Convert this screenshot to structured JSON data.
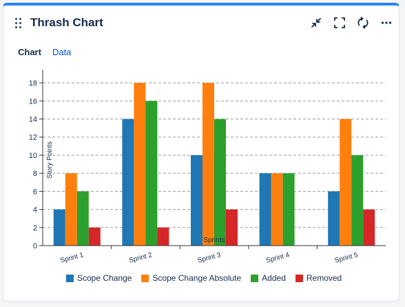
{
  "header": {
    "title": "Thrash Chart",
    "actions": [
      {
        "name": "collapse-icon"
      },
      {
        "name": "fullscreen-icon"
      },
      {
        "name": "refresh-icon"
      },
      {
        "name": "more-icon"
      }
    ]
  },
  "tabs": [
    {
      "label": "Chart",
      "active": true
    },
    {
      "label": "Data",
      "active": false
    }
  ],
  "colors": {
    "accent": "#2684ff",
    "scope_change": "#1f77b4",
    "scope_change_absolute": "#ff7f0e",
    "added": "#2ca02c",
    "removed": "#d62728"
  },
  "chart_data": {
    "type": "bar",
    "xlabel": "Sprints",
    "ylabel": "Story Points",
    "ylim": [
      0,
      19
    ],
    "yticks": [
      0,
      2,
      4,
      6,
      8,
      10,
      12,
      14,
      16,
      18
    ],
    "grid": true,
    "legend": "bottom",
    "categories": [
      "Sprint 1",
      "Sprint 2",
      "Sprint 3",
      "Sprint 4",
      "Sprint 5"
    ],
    "series": [
      {
        "name": "Scope Change",
        "values": [
          4,
          14,
          10,
          8,
          6
        ]
      },
      {
        "name": "Scope Change Absolute",
        "values": [
          8,
          18,
          18,
          8,
          14
        ]
      },
      {
        "name": "Added",
        "values": [
          6,
          16,
          14,
          8,
          10
        ]
      },
      {
        "name": "Removed",
        "values": [
          2,
          2,
          4,
          0,
          4
        ]
      }
    ]
  }
}
